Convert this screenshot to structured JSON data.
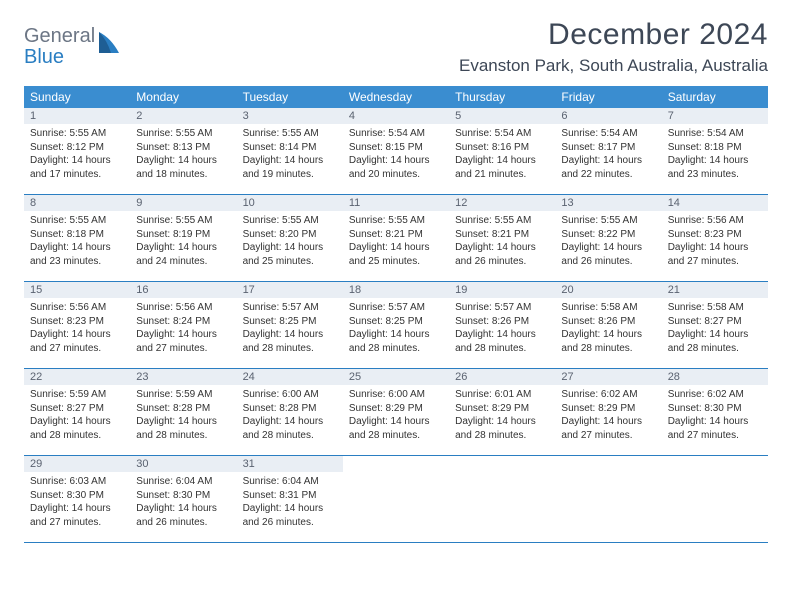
{
  "brand": {
    "general": "General",
    "blue": "Blue"
  },
  "title": "December 2024",
  "location": "Evanston Park, South Australia, Australia",
  "colors": {
    "header_bg": "#3a8dd0",
    "week_border": "#2a7ec2",
    "daynum_bg": "#e9eef4",
    "text": "#333333",
    "title_text": "#3d4756"
  },
  "weekdays": [
    "Sunday",
    "Monday",
    "Tuesday",
    "Wednesday",
    "Thursday",
    "Friday",
    "Saturday"
  ],
  "weeks": [
    [
      {
        "n": "1",
        "sr": "Sunrise: 5:55 AM",
        "ss": "Sunset: 8:12 PM",
        "d1": "Daylight: 14 hours",
        "d2": "and 17 minutes."
      },
      {
        "n": "2",
        "sr": "Sunrise: 5:55 AM",
        "ss": "Sunset: 8:13 PM",
        "d1": "Daylight: 14 hours",
        "d2": "and 18 minutes."
      },
      {
        "n": "3",
        "sr": "Sunrise: 5:55 AM",
        "ss": "Sunset: 8:14 PM",
        "d1": "Daylight: 14 hours",
        "d2": "and 19 minutes."
      },
      {
        "n": "4",
        "sr": "Sunrise: 5:54 AM",
        "ss": "Sunset: 8:15 PM",
        "d1": "Daylight: 14 hours",
        "d2": "and 20 minutes."
      },
      {
        "n": "5",
        "sr": "Sunrise: 5:54 AM",
        "ss": "Sunset: 8:16 PM",
        "d1": "Daylight: 14 hours",
        "d2": "and 21 minutes."
      },
      {
        "n": "6",
        "sr": "Sunrise: 5:54 AM",
        "ss": "Sunset: 8:17 PM",
        "d1": "Daylight: 14 hours",
        "d2": "and 22 minutes."
      },
      {
        "n": "7",
        "sr": "Sunrise: 5:54 AM",
        "ss": "Sunset: 8:18 PM",
        "d1": "Daylight: 14 hours",
        "d2": "and 23 minutes."
      }
    ],
    [
      {
        "n": "8",
        "sr": "Sunrise: 5:55 AM",
        "ss": "Sunset: 8:18 PM",
        "d1": "Daylight: 14 hours",
        "d2": "and 23 minutes."
      },
      {
        "n": "9",
        "sr": "Sunrise: 5:55 AM",
        "ss": "Sunset: 8:19 PM",
        "d1": "Daylight: 14 hours",
        "d2": "and 24 minutes."
      },
      {
        "n": "10",
        "sr": "Sunrise: 5:55 AM",
        "ss": "Sunset: 8:20 PM",
        "d1": "Daylight: 14 hours",
        "d2": "and 25 minutes."
      },
      {
        "n": "11",
        "sr": "Sunrise: 5:55 AM",
        "ss": "Sunset: 8:21 PM",
        "d1": "Daylight: 14 hours",
        "d2": "and 25 minutes."
      },
      {
        "n": "12",
        "sr": "Sunrise: 5:55 AM",
        "ss": "Sunset: 8:21 PM",
        "d1": "Daylight: 14 hours",
        "d2": "and 26 minutes."
      },
      {
        "n": "13",
        "sr": "Sunrise: 5:55 AM",
        "ss": "Sunset: 8:22 PM",
        "d1": "Daylight: 14 hours",
        "d2": "and 26 minutes."
      },
      {
        "n": "14",
        "sr": "Sunrise: 5:56 AM",
        "ss": "Sunset: 8:23 PM",
        "d1": "Daylight: 14 hours",
        "d2": "and 27 minutes."
      }
    ],
    [
      {
        "n": "15",
        "sr": "Sunrise: 5:56 AM",
        "ss": "Sunset: 8:23 PM",
        "d1": "Daylight: 14 hours",
        "d2": "and 27 minutes."
      },
      {
        "n": "16",
        "sr": "Sunrise: 5:56 AM",
        "ss": "Sunset: 8:24 PM",
        "d1": "Daylight: 14 hours",
        "d2": "and 27 minutes."
      },
      {
        "n": "17",
        "sr": "Sunrise: 5:57 AM",
        "ss": "Sunset: 8:25 PM",
        "d1": "Daylight: 14 hours",
        "d2": "and 28 minutes."
      },
      {
        "n": "18",
        "sr": "Sunrise: 5:57 AM",
        "ss": "Sunset: 8:25 PM",
        "d1": "Daylight: 14 hours",
        "d2": "and 28 minutes."
      },
      {
        "n": "19",
        "sr": "Sunrise: 5:57 AM",
        "ss": "Sunset: 8:26 PM",
        "d1": "Daylight: 14 hours",
        "d2": "and 28 minutes."
      },
      {
        "n": "20",
        "sr": "Sunrise: 5:58 AM",
        "ss": "Sunset: 8:26 PM",
        "d1": "Daylight: 14 hours",
        "d2": "and 28 minutes."
      },
      {
        "n": "21",
        "sr": "Sunrise: 5:58 AM",
        "ss": "Sunset: 8:27 PM",
        "d1": "Daylight: 14 hours",
        "d2": "and 28 minutes."
      }
    ],
    [
      {
        "n": "22",
        "sr": "Sunrise: 5:59 AM",
        "ss": "Sunset: 8:27 PM",
        "d1": "Daylight: 14 hours",
        "d2": "and 28 minutes."
      },
      {
        "n": "23",
        "sr": "Sunrise: 5:59 AM",
        "ss": "Sunset: 8:28 PM",
        "d1": "Daylight: 14 hours",
        "d2": "and 28 minutes."
      },
      {
        "n": "24",
        "sr": "Sunrise: 6:00 AM",
        "ss": "Sunset: 8:28 PM",
        "d1": "Daylight: 14 hours",
        "d2": "and 28 minutes."
      },
      {
        "n": "25",
        "sr": "Sunrise: 6:00 AM",
        "ss": "Sunset: 8:29 PM",
        "d1": "Daylight: 14 hours",
        "d2": "and 28 minutes."
      },
      {
        "n": "26",
        "sr": "Sunrise: 6:01 AM",
        "ss": "Sunset: 8:29 PM",
        "d1": "Daylight: 14 hours",
        "d2": "and 28 minutes."
      },
      {
        "n": "27",
        "sr": "Sunrise: 6:02 AM",
        "ss": "Sunset: 8:29 PM",
        "d1": "Daylight: 14 hours",
        "d2": "and 27 minutes."
      },
      {
        "n": "28",
        "sr": "Sunrise: 6:02 AM",
        "ss": "Sunset: 8:30 PM",
        "d1": "Daylight: 14 hours",
        "d2": "and 27 minutes."
      }
    ],
    [
      {
        "n": "29",
        "sr": "Sunrise: 6:03 AM",
        "ss": "Sunset: 8:30 PM",
        "d1": "Daylight: 14 hours",
        "d2": "and 27 minutes."
      },
      {
        "n": "30",
        "sr": "Sunrise: 6:04 AM",
        "ss": "Sunset: 8:30 PM",
        "d1": "Daylight: 14 hours",
        "d2": "and 26 minutes."
      },
      {
        "n": "31",
        "sr": "Sunrise: 6:04 AM",
        "ss": "Sunset: 8:31 PM",
        "d1": "Daylight: 14 hours",
        "d2": "and 26 minutes."
      },
      null,
      null,
      null,
      null
    ]
  ]
}
